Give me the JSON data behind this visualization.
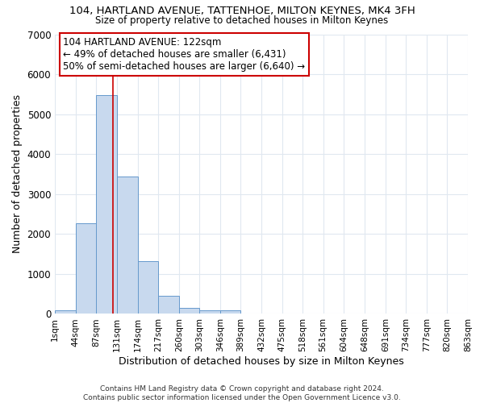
{
  "title": "104, HARTLAND AVENUE, TATTENHOE, MILTON KEYNES, MK4 3FH",
  "subtitle": "Size of property relative to detached houses in Milton Keynes",
  "xlabel": "Distribution of detached houses by size in Milton Keynes",
  "ylabel": "Number of detached properties",
  "bin_edges": [
    1,
    44,
    87,
    131,
    174,
    217,
    260,
    303,
    346,
    389,
    432,
    475,
    518,
    561,
    604,
    648,
    691,
    734,
    777,
    820,
    863
  ],
  "bar_heights": [
    100,
    2270,
    5480,
    3430,
    1320,
    460,
    160,
    80,
    80,
    0,
    0,
    0,
    0,
    0,
    0,
    0,
    0,
    0,
    0,
    0
  ],
  "bar_color": "#c8d9ee",
  "bar_edge_color": "#6699cc",
  "bar_edge_width": 0.7,
  "property_size": 122,
  "property_line_color": "#cc0000",
  "annotation_line1": "104 HARTLAND AVENUE: 122sqm",
  "annotation_line2": "← 49% of detached houses are smaller (6,431)",
  "annotation_line3": "50% of semi-detached houses are larger (6,640) →",
  "annotation_box_color": "#cc0000",
  "ylim": [
    0,
    7000
  ],
  "background_color": "#ffffff",
  "grid_color": "#e0e8f0",
  "footer_text": "Contains HM Land Registry data © Crown copyright and database right 2024.\nContains public sector information licensed under the Open Government Licence v3.0.",
  "tick_labels": [
    "1sqm",
    "44sqm",
    "87sqm",
    "131sqm",
    "174sqm",
    "217sqm",
    "260sqm",
    "303sqm",
    "346sqm",
    "389sqm",
    "432sqm",
    "475sqm",
    "518sqm",
    "561sqm",
    "604sqm",
    "648sqm",
    "691sqm",
    "734sqm",
    "777sqm",
    "820sqm",
    "863sqm"
  ],
  "yticks": [
    0,
    1000,
    2000,
    3000,
    4000,
    5000,
    6000,
    7000
  ]
}
